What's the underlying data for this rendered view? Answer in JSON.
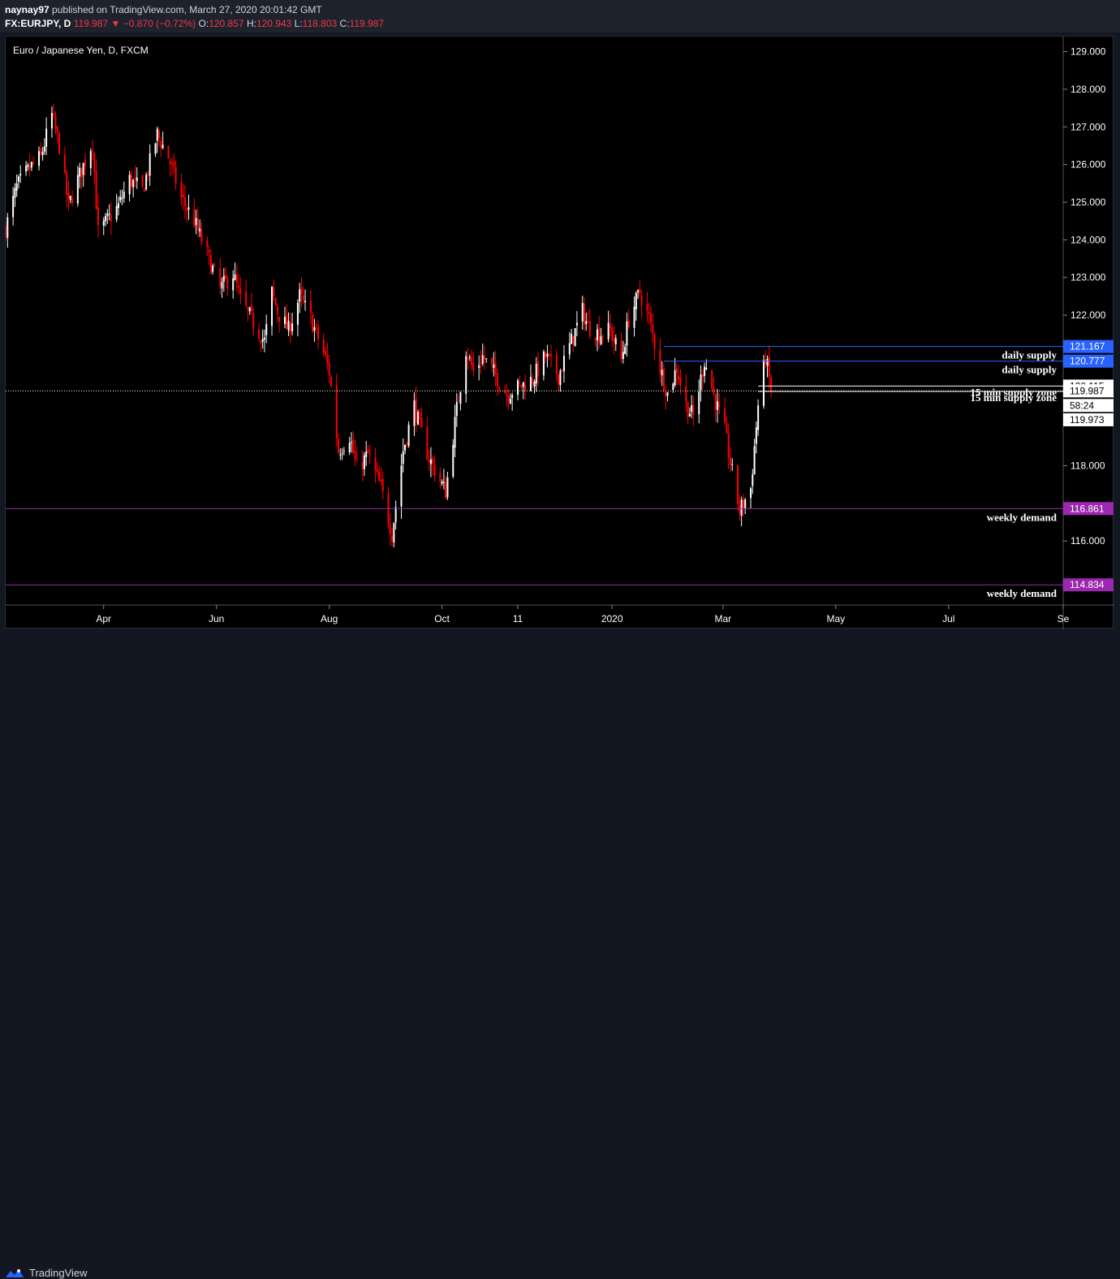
{
  "header": {
    "author": "naynay97",
    "published_text": "published on TradingView.com, March 27, 2020 20:01:42 GMT",
    "symbol": "FX:EURJPY, D",
    "last": "119.987",
    "change": "−0.870 (−0.72%)",
    "o_label": "O:",
    "o_value": "120.857",
    "h_label": "H:",
    "h_value": "120.943",
    "l_label": "L:",
    "l_value": "118.803",
    "c_label": "C:",
    "c_value": "119.987"
  },
  "footer": {
    "brand": "TradingView"
  },
  "colors": {
    "up": "#ffffff",
    "down": "#ff0000",
    "background": "#000000",
    "supply": "#2962ff",
    "demand": "#9c27b0",
    "supply_label": "#1e1eff",
    "demand_label": "#9c27b0"
  },
  "chart_data": {
    "type": "candlestick",
    "title": "Euro / Japanese Yen, D, FXCM",
    "ylim": [
      114.3,
      129.4
    ],
    "y_ticks": [
      "129.000",
      "128.000",
      "127.000",
      "126.000",
      "125.000",
      "124.000",
      "123.000",
      "122.000",
      "118.000",
      "116.000"
    ],
    "x_ticks": [
      {
        "label": "Apr",
        "date": "2019-04-01"
      },
      {
        "label": "Jun",
        "date": "2019-06-01"
      },
      {
        "label": "Aug",
        "date": "2019-08-01"
      },
      {
        "label": "Oct",
        "date": "2019-10-01"
      },
      {
        "label": "11",
        "date": "2019-11-11"
      },
      {
        "label": "2020",
        "date": "2020-01-01"
      },
      {
        "label": "Mar",
        "date": "2020-03-01"
      },
      {
        "label": "May",
        "date": "2020-05-01"
      },
      {
        "label": "Jul",
        "date": "2020-07-01"
      },
      {
        "label": "Se",
        "date": "2020-09-01"
      }
    ],
    "xlim": [
      "2019-02-07",
      "2020-09-01"
    ],
    "last_price": 119.987,
    "price_labels": [
      {
        "value": "121.167",
        "color": "#2962ff"
      },
      {
        "value": "120.777",
        "color": "#2962ff"
      },
      {
        "value": "120.115",
        "color": "#ffffff"
      },
      {
        "value": "119.987",
        "color": "#ffffff"
      },
      {
        "value": "58:24",
        "color": "#ffffff"
      },
      {
        "value": "119.973",
        "color": "#ffffff"
      },
      {
        "value": "116.861",
        "color": "#9c27b0"
      },
      {
        "value": "114.834",
        "color": "#9c27b0"
      }
    ],
    "zones": [
      {
        "label": "daily supply",
        "value": 121.167,
        "start": "2020-01-29"
      },
      {
        "label": "daily supply",
        "value": 120.777,
        "start": "2020-01-29"
      },
      {
        "label": "15 min supply zone",
        "value": 120.115,
        "start": "2020-03-20"
      },
      {
        "label": "15 min supply zone",
        "value": 119.973,
        "start": "2020-03-20"
      },
      {
        "label": "weekly demand",
        "value": 116.861,
        "start": "2019-02-07"
      },
      {
        "label": "weekly demand",
        "value": 114.834,
        "start": "2019-02-07"
      }
    ],
    "anchors": [
      [
        "2019-02-07",
        124.3
      ],
      [
        "2019-02-13",
        125.4
      ],
      [
        "2019-02-20",
        125.9
      ],
      [
        "2019-02-26",
        126.2
      ],
      [
        "2019-03-04",
        127.3
      ],
      [
        "2019-03-08",
        126.5
      ],
      [
        "2019-03-13",
        124.9
      ],
      [
        "2019-03-18",
        125.6
      ],
      [
        "2019-03-26",
        126.6
      ],
      [
        "2019-03-29",
        124.2
      ],
      [
        "2019-04-03",
        124.5
      ],
      [
        "2019-04-09",
        124.9
      ],
      [
        "2019-04-15",
        125.6
      ],
      [
        "2019-04-22",
        125.3
      ],
      [
        "2019-04-30",
        126.8
      ],
      [
        "2019-05-06",
        126.2
      ],
      [
        "2019-05-13",
        125.1
      ],
      [
        "2019-05-20",
        124.5
      ],
      [
        "2019-05-27",
        123.6
      ],
      [
        "2019-06-03",
        122.7
      ],
      [
        "2019-06-10",
        123.1
      ],
      [
        "2019-06-14",
        122.4
      ],
      [
        "2019-06-21",
        121.8
      ],
      [
        "2019-06-27",
        121.3
      ],
      [
        "2019-07-01",
        122.6
      ],
      [
        "2019-07-04",
        122.1
      ],
      [
        "2019-07-10",
        121.6
      ],
      [
        "2019-07-16",
        122.5
      ],
      [
        "2019-07-22",
        121.9
      ],
      [
        "2019-07-29",
        121.0
      ],
      [
        "2019-08-01",
        120.5
      ],
      [
        "2019-08-06",
        118.4
      ],
      [
        "2019-08-12",
        118.8
      ],
      [
        "2019-08-16",
        117.9
      ],
      [
        "2019-08-22",
        118.3
      ],
      [
        "2019-08-29",
        117.4
      ],
      [
        "2019-09-04",
        116.2
      ],
      [
        "2019-09-10",
        118.4
      ],
      [
        "2019-09-16",
        119.6
      ],
      [
        "2019-09-19",
        119.0
      ],
      [
        "2019-09-24",
        118.2
      ],
      [
        "2019-09-30",
        117.6
      ],
      [
        "2019-10-03",
        117.3
      ],
      [
        "2019-10-09",
        119.5
      ],
      [
        "2019-10-14",
        121.1
      ],
      [
        "2019-10-18",
        120.5
      ],
      [
        "2019-10-23",
        120.9
      ],
      [
        "2019-10-30",
        120.4
      ],
      [
        "2019-11-05",
        119.9
      ],
      [
        "2019-11-12",
        120.1
      ],
      [
        "2019-11-19",
        120.3
      ],
      [
        "2019-11-26",
        120.9
      ],
      [
        "2019-12-03",
        120.4
      ],
      [
        "2019-12-10",
        121.3
      ],
      [
        "2019-12-16",
        122.1
      ],
      [
        "2019-12-19",
        121.7
      ],
      [
        "2019-12-25",
        121.5
      ],
      [
        "2019-12-31",
        121.6
      ],
      [
        "2020-01-06",
        120.8
      ],
      [
        "2020-01-10",
        121.9
      ],
      [
        "2020-01-16",
        122.6
      ],
      [
        "2020-01-21",
        121.9
      ],
      [
        "2020-01-27",
        120.6
      ],
      [
        "2020-01-31",
        119.9
      ],
      [
        "2020-02-05",
        120.6
      ],
      [
        "2020-02-10",
        119.6
      ],
      [
        "2020-02-14",
        119.3
      ],
      [
        "2020-02-20",
        120.8
      ],
      [
        "2020-02-26",
        119.7
      ],
      [
        "2020-03-02",
        118.9
      ],
      [
        "2020-03-06",
        117.8
      ],
      [
        "2020-03-10",
        116.8
      ],
      [
        "2020-03-16",
        117.4
      ],
      [
        "2020-03-20",
        119.6
      ],
      [
        "2020-03-24",
        120.9
      ],
      [
        "2020-03-27",
        119.987
      ]
    ]
  }
}
